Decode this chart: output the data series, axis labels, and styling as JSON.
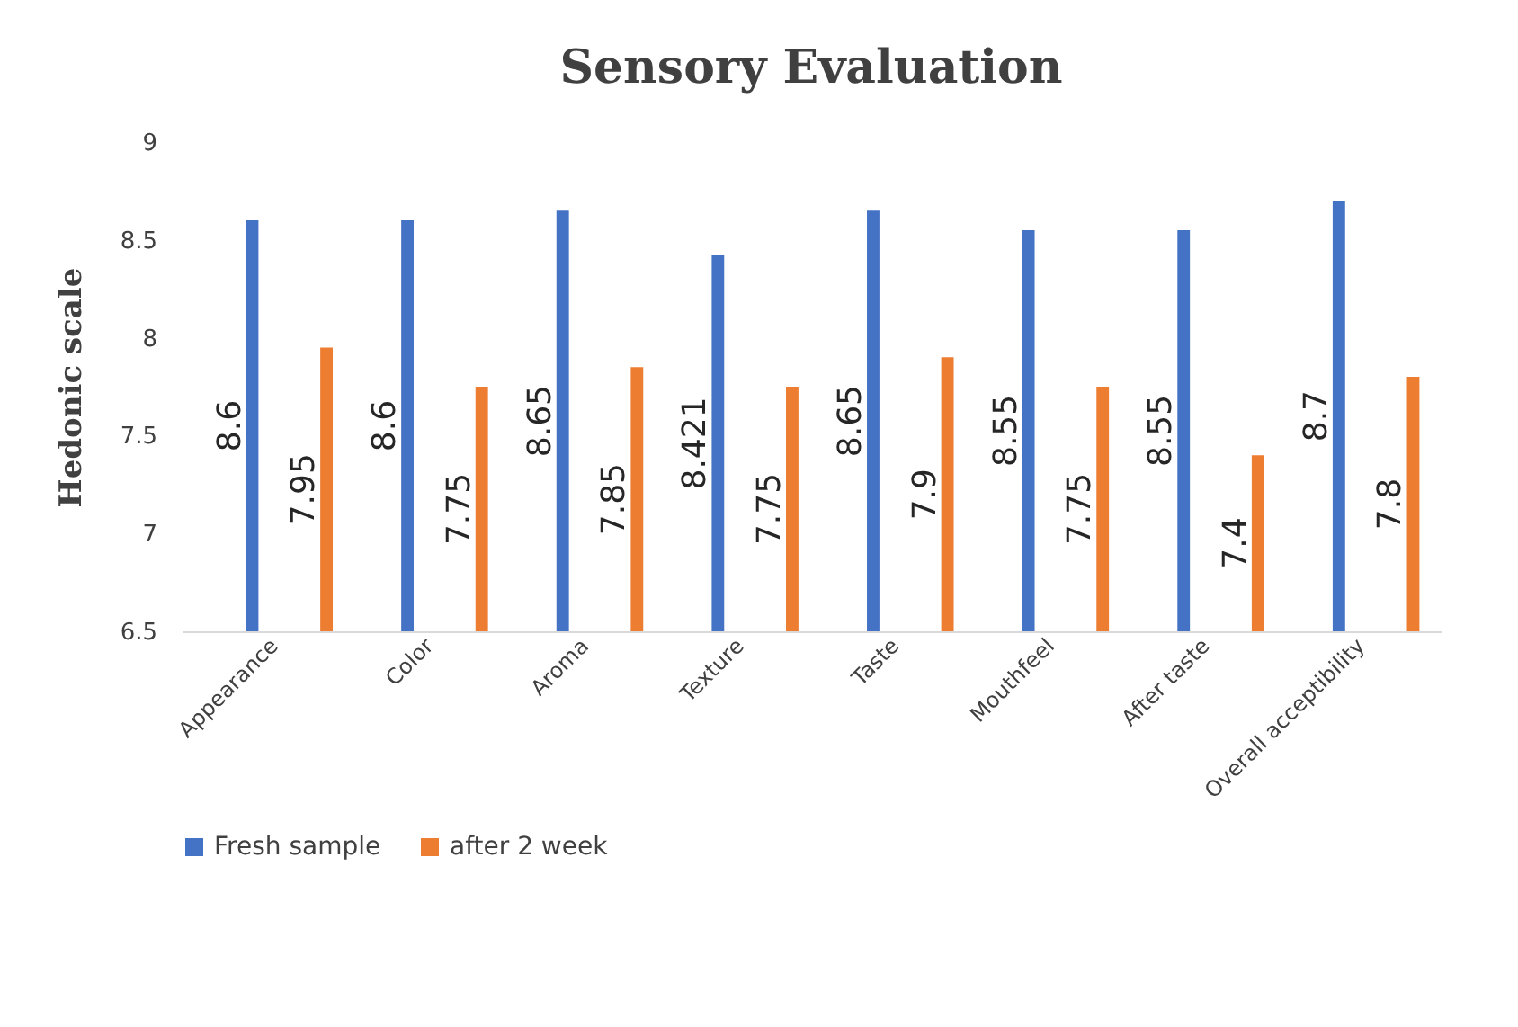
{
  "chart_data": {
    "type": "bar",
    "title": "Sensory Evaluation",
    "ylabel": "Hedonic scale",
    "categories": [
      "Appearance",
      "Color",
      "Aroma",
      "Texture",
      "Taste",
      "Mouthfeel",
      "After taste",
      "Overall acceptibility"
    ],
    "series": [
      {
        "name": "Fresh sample",
        "color": "#4472c4",
        "values": [
          8.6,
          8.6,
          8.65,
          8.421,
          8.65,
          8.55,
          8.55,
          8.7
        ]
      },
      {
        "name": "after 2 week",
        "color": "#ed7d31",
        "values": [
          7.95,
          7.75,
          7.85,
          7.75,
          7.9,
          7.75,
          7.4,
          7.8
        ]
      }
    ],
    "ylim": [
      6.5,
      9
    ],
    "yticks": [
      6.5,
      7,
      7.5,
      8,
      8.5,
      9
    ],
    "grid": false,
    "legend": "bottom",
    "data_labels": true
  }
}
